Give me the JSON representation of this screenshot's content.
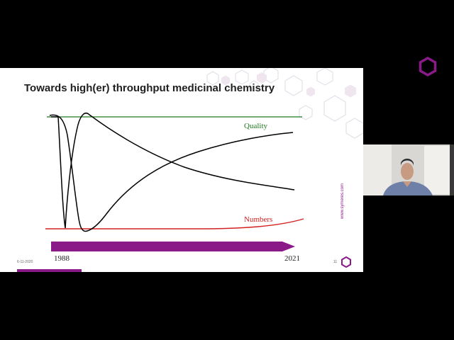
{
  "slide": {
    "title": "Towards high(er) throughput medicinal chemistry",
    "date": "6-11-2020",
    "number": "11",
    "website": "www.symeres.com"
  },
  "colors": {
    "brand": "#8b1a89",
    "quality_line": "#1e7a1e",
    "numbers_line": "#d42020",
    "curves": "#000000"
  },
  "icons": {
    "top_logo": "hexagon-logo-icon",
    "footer_logo": "hexagon-logo-icon"
  },
  "chart_data": {
    "type": "line",
    "series": [
      {
        "name": "Quality"
      },
      {
        "name": "Numbers"
      }
    ],
    "timeline": {
      "start": "1988",
      "end": "2021"
    }
  },
  "webcam": {
    "description_icon": "presenter-video-icon"
  }
}
